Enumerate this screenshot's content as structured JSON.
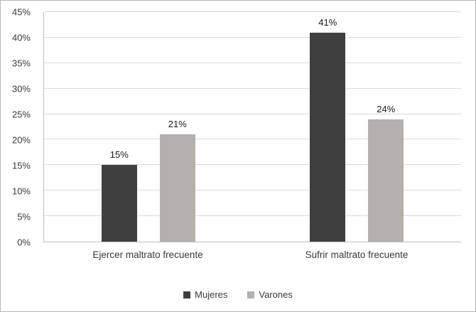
{
  "chart_data": {
    "type": "bar",
    "title": "",
    "categories": [
      "Ejercer maltrato frecuente",
      "Sufrir maltrato frecuente"
    ],
    "series": [
      {
        "name": "Mujeres",
        "color": "#3f3f3f",
        "values": [
          15,
          41
        ]
      },
      {
        "name": "Varones",
        "color": "#b3b0ad",
        "values": [
          21,
          24
        ]
      }
    ],
    "value_suffix": "%",
    "data_labels": [
      "15%",
      "21%",
      "41%",
      "24%"
    ],
    "xlabel": "",
    "ylabel": "",
    "ylim": [
      0,
      45
    ],
    "ytick_step": 5,
    "ytick_labels": [
      "0%",
      "5%",
      "10%",
      "15%",
      "20%",
      "25%",
      "30%",
      "35%",
      "40%",
      "45%"
    ],
    "grid": true,
    "legend_position": "bottom",
    "axis_color": "#bfbfbf",
    "grid_color": "#d9d9d9",
    "frame_border_color": "#b8b8b8"
  }
}
